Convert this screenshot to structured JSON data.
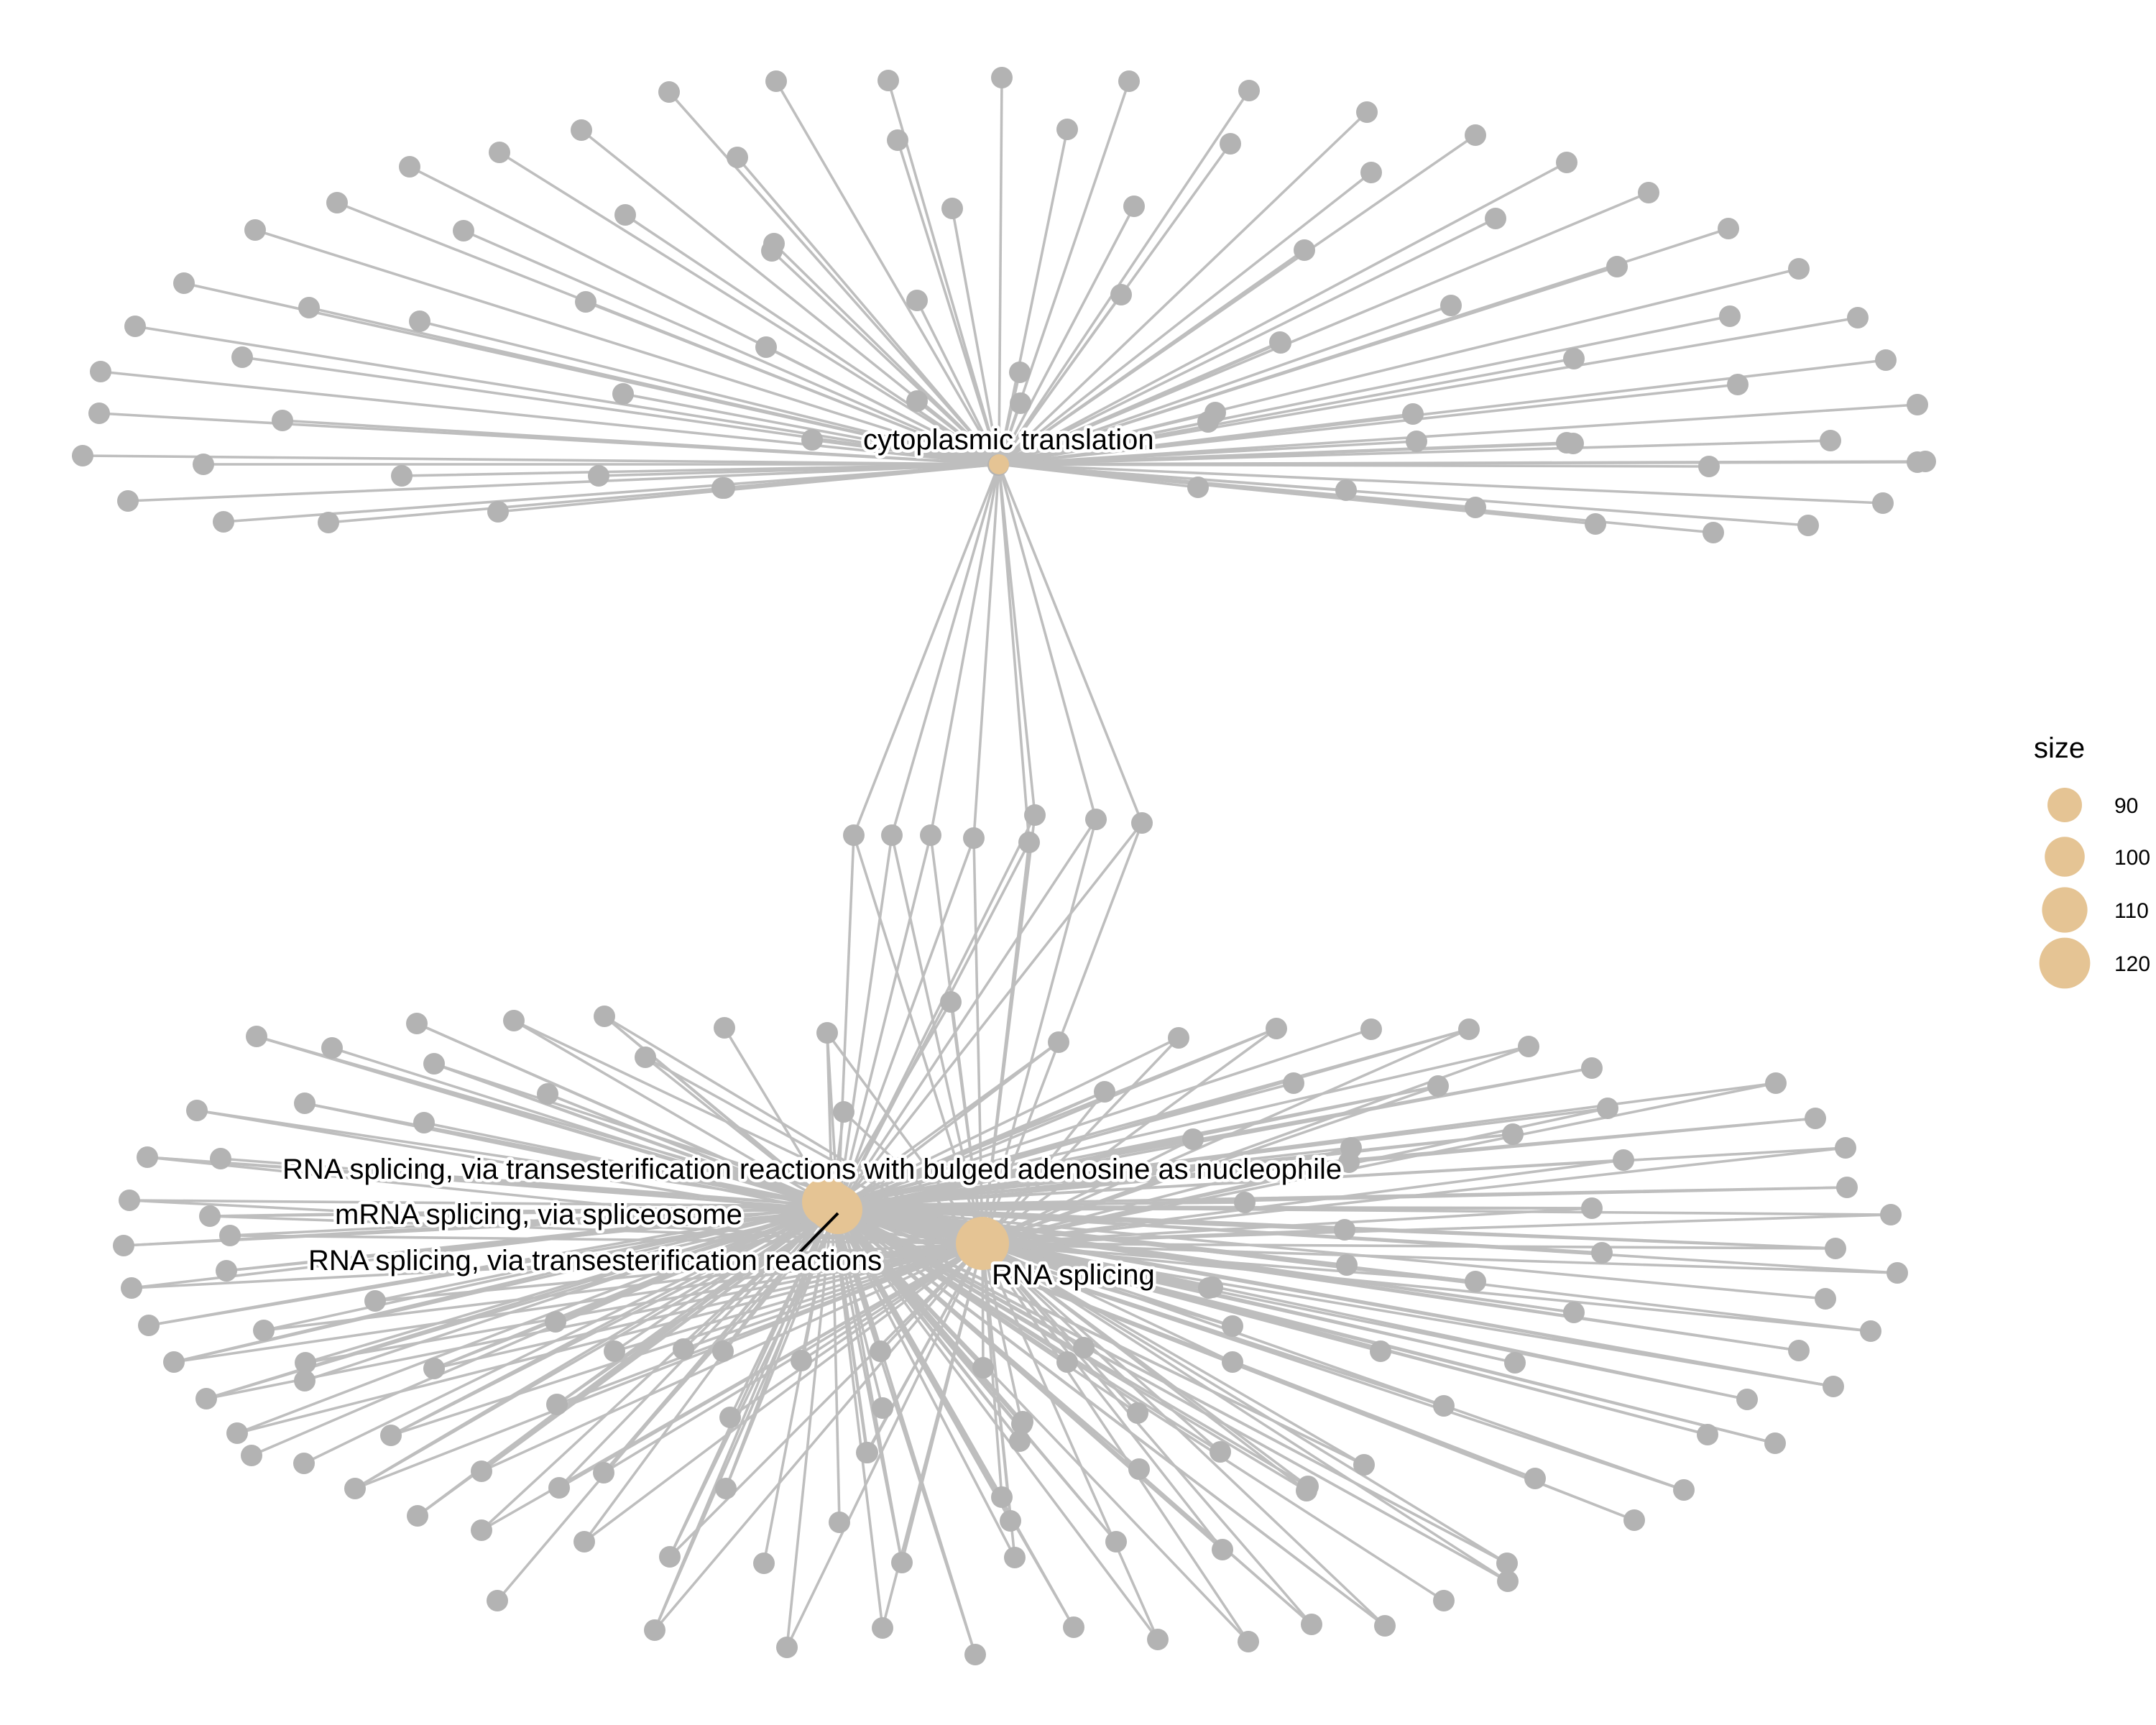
{
  "node_color": "#E5C494",
  "gene_color": "#B3B3B3",
  "edge_color": "#BEBEBE",
  "categories": [
    {
      "name": "cytoplasmic translation"
    },
    {
      "name": "RNA splicing, via transesterification reactions with bulged adenosine as nucleophile"
    },
    {
      "name": "mRNA splicing, via spliceosome"
    },
    {
      "name": "RNA splicing, via transesterification reactions"
    },
    {
      "name": "RNA splicing"
    }
  ],
  "legend": {
    "title": "size",
    "entries": [
      {
        "label": "90",
        "value": 90
      },
      {
        "label": "100",
        "value": 100
      },
      {
        "label": "110",
        "value": 110
      },
      {
        "label": "120",
        "value": 120
      }
    ]
  }
}
